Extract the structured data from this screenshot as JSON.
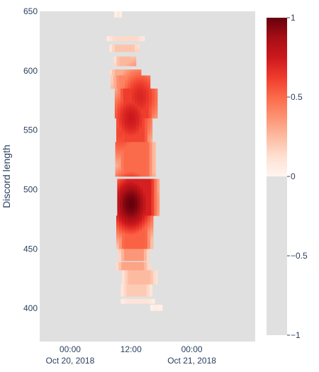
{
  "chart_data": {
    "type": "heatmap",
    "title": "",
    "xlabel": "",
    "ylabel": "Discord length",
    "x_ticks": [
      {
        "line1": "00:00",
        "line2": "Oct 20, 2018",
        "t": 0
      },
      {
        "line1": "12:00",
        "line2": "",
        "t": 12
      },
      {
        "line1": "00:00",
        "line2": "Oct 21, 2018",
        "t": 24
      }
    ],
    "xlim_hours_from_oct20": [
      -6,
      36.5
    ],
    "y_ticks": [
      400,
      450,
      500,
      550,
      600,
      650
    ],
    "ylim": [
      372,
      650
    ],
    "colorscale": "Reds",
    "colorbar": {
      "ticks": [
        1,
        0.5,
        0,
        -0.5,
        -1
      ],
      "tick_labels": [
        "1",
        "0.5",
        "0",
        "−0.5",
        "−1"
      ],
      "range": [
        -1,
        1
      ]
    },
    "empty_value": -1,
    "spans": [
      {
        "y": [
          645,
          650
        ],
        "x": [
          8.7,
          10.2
        ],
        "v": 0.08
      },
      {
        "y": [
          625,
          629
        ],
        "x": [
          7.2,
          14.7
        ],
        "v": 0.15
      },
      {
        "y": [
          616,
          622
        ],
        "x": [
          7.7,
          13.7
        ],
        "v": 0.22
      },
      {
        "y": [
          604,
          612
        ],
        "x": [
          8.6,
          13.0
        ],
        "v": 0.26
      },
      {
        "y": [
          596,
          601
        ],
        "x": [
          7.7,
          14.0
        ],
        "v": 0.3
      },
      {
        "y": [
          585,
          596
        ],
        "x": [
          8.0,
          15.8
        ],
        "v": 0.42
      },
      {
        "y": [
          560,
          585
        ],
        "x": [
          8.8,
          17.2
        ],
        "v": 0.62
      },
      {
        "y": [
          540,
          560
        ],
        "x": [
          9.1,
          16.2
        ],
        "v": 0.6
      },
      {
        "y": [
          511,
          540
        ],
        "x": [
          8.9,
          16.9
        ],
        "v": 0.5
      },
      {
        "y": [
          478,
          509
        ],
        "x": [
          9.3,
          17.6
        ],
        "v": 0.72
      },
      {
        "y": [
          450,
          478
        ],
        "x": [
          9.1,
          16.4
        ],
        "v": 0.52
      },
      {
        "y": [
          440,
          450
        ],
        "x": [
          9.5,
          15.6
        ],
        "v": 0.36
      },
      {
        "y": [
          432,
          439
        ],
        "x": [
          9.0,
          15.8
        ],
        "v": 0.32
      },
      {
        "y": [
          420,
          432
        ],
        "x": [
          10.2,
          17.2
        ],
        "v": 0.25
      },
      {
        "y": [
          410,
          420
        ],
        "x": [
          10.0,
          16.2
        ],
        "v": 0.2
      },
      {
        "y": [
          404,
          408
        ],
        "x": [
          10.0,
          16.7
        ],
        "v": 0.1
      },
      {
        "y": [
          398,
          403
        ],
        "x": [
          15.8,
          18.2
        ],
        "v": 0.05
      }
    ],
    "hotspots": [
      {
        "x": 12.0,
        "y": 488,
        "v": 1.0
      },
      {
        "x": 12.0,
        "y": 560,
        "v": 0.75
      },
      {
        "x": 13.8,
        "y": 578,
        "v": 0.7
      },
      {
        "x": 10.0,
        "y": 548,
        "v": 0.6
      }
    ]
  }
}
